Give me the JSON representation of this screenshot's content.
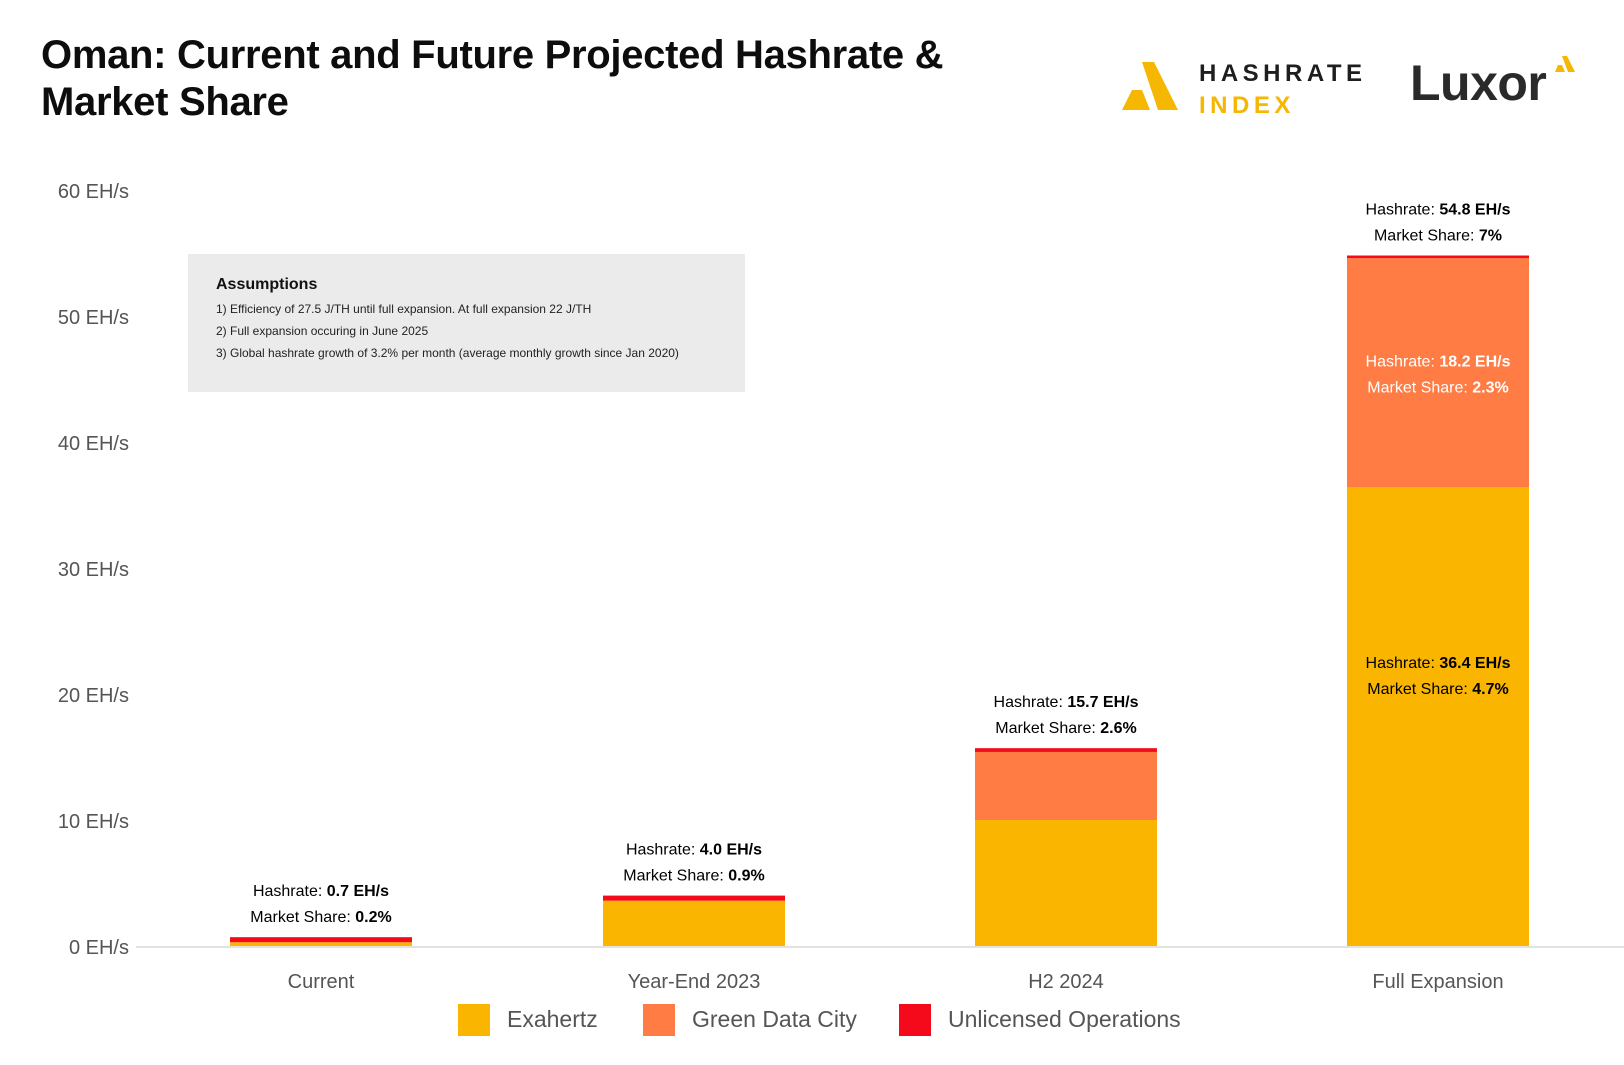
{
  "header": {
    "title": "Oman: Current and Future Projected Hashrate & Market Share",
    "logo_hashrate_line1": "HASHRATE",
    "logo_hashrate_line2": "INDEX",
    "logo_luxor": "Luxor"
  },
  "assumptions": {
    "heading": "Assumptions",
    "items": [
      "1) Efficiency of 27.5 J/TH until full expansion. At full expansion 22 J/TH",
      "2) Full expansion occuring in June 2025",
      "3) Global hashrate growth of 3.2% per month (average monthly growth since Jan 2020)"
    ]
  },
  "colors": {
    "exahertz": "#f9b500",
    "green_data_city": "#ff7c45",
    "unlicensed": "#f50a1c",
    "axis_text": "#555555"
  },
  "chart_data": {
    "type": "bar",
    "stacked": true,
    "title": "Oman: Current and Future Projected Hashrate & Market Share",
    "categories": [
      "Current",
      "Year-End 2023",
      "H2 2024",
      "Full Expansion"
    ],
    "series": [
      {
        "name": "Exahertz",
        "color": "#f9b500",
        "values": [
          0.3,
          3.6,
          10.0,
          36.4
        ]
      },
      {
        "name": "Green Data City",
        "color": "#ff7c45",
        "values": [
          0.0,
          0.0,
          5.4,
          18.2
        ]
      },
      {
        "name": "Unlicensed Operations",
        "color": "#f50a1c",
        "values": [
          0.4,
          0.4,
          0.3,
          0.2
        ]
      }
    ],
    "ylim": [
      0,
      60
    ],
    "yticks": [
      0,
      10,
      20,
      30,
      40,
      50,
      60
    ],
    "ytick_labels": [
      "0 EH/s",
      "10 EH/s",
      "20 EH/s",
      "30 EH/s",
      "40 EH/s",
      "50 EH/s",
      "60 EH/s"
    ],
    "ylabel": "",
    "xlabel": "",
    "legend_position": "bottom",
    "annotations": [
      {
        "category": "Current",
        "anchor": "top",
        "value_ref": 0.7,
        "color": "#000000",
        "line1_label": "Hashrate: ",
        "line1_value": "0.7 EH/s",
        "line2_label": "Market Share: ",
        "line2_value": "0.2%"
      },
      {
        "category": "Year-End 2023",
        "anchor": "top",
        "value_ref": 4.0,
        "color": "#000000",
        "line1_label": "Hashrate: ",
        "line1_value": "4.0 EH/s",
        "line2_label": "Market Share: ",
        "line2_value": "0.9%"
      },
      {
        "category": "H2 2024",
        "anchor": "top",
        "value_ref": 15.7,
        "color": "#000000",
        "line1_label": "Hashrate: ",
        "line1_value": "15.7 EH/s",
        "line2_label": "Market Share: ",
        "line2_value": "2.6%"
      },
      {
        "category": "Full Expansion",
        "anchor": "top",
        "value_ref": 54.8,
        "color": "#000000",
        "line1_label": "Hashrate: ",
        "line1_value": "54.8 EH/s",
        "line2_label": "Market Share: ",
        "line2_value": "7%"
      },
      {
        "category": "Full Expansion",
        "anchor": "inside",
        "value_ref": 45.5,
        "color": "#ffffff",
        "line1_label": "Hashrate: ",
        "line1_value": "18.2 EH/s",
        "line2_label": "Market Share: ",
        "line2_value": "2.3%"
      },
      {
        "category": "Full Expansion",
        "anchor": "inside",
        "value_ref": 21.6,
        "color": "#000000",
        "line1_label": "Hashrate: ",
        "line1_value": "36.4 EH/s",
        "line2_label": "Market Share: ",
        "line2_value": "4.7%"
      }
    ]
  }
}
